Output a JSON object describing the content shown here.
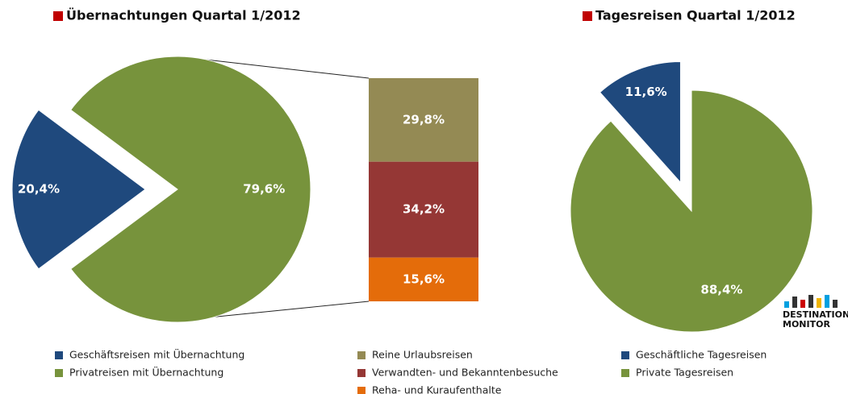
{
  "chart_data": [
    {
      "type": "pie",
      "title": "Übernachtungen Quartal 1/2012",
      "categories": [
        "Geschäftsreisen mit Übernachtung",
        "Privatreisen mit Übernachtung"
      ],
      "values": [
        20.4,
        79.6
      ],
      "value_labels": [
        "20,4%",
        "79,6%"
      ],
      "colors": [
        "#1f497d",
        "#77933c"
      ]
    },
    {
      "type": "bar",
      "categories": [
        "Reine Urlaubsreisen",
        "Verwandten- und Bekanntenbesuche",
        "Reha- und Kuraufenthalte"
      ],
      "values": [
        29.8,
        34.2,
        15.6
      ],
      "value_labels": [
        "29,8%",
        "34,2%",
        "15,6%"
      ],
      "colors": [
        "#948a54",
        "#953735",
        "#e46c0a"
      ]
    },
    {
      "type": "pie",
      "title": "Tagesreisen Quartal 1/2012",
      "categories": [
        "Geschäftliche Tagesreisen",
        "Private Tagesreisen"
      ],
      "values": [
        11.6,
        88.4
      ],
      "value_labels": [
        "11,6%",
        "88,4%"
      ],
      "colors": [
        "#1f497d",
        "#77933c"
      ]
    }
  ],
  "logo": [
    "DESTINATION",
    "MONITOR"
  ]
}
